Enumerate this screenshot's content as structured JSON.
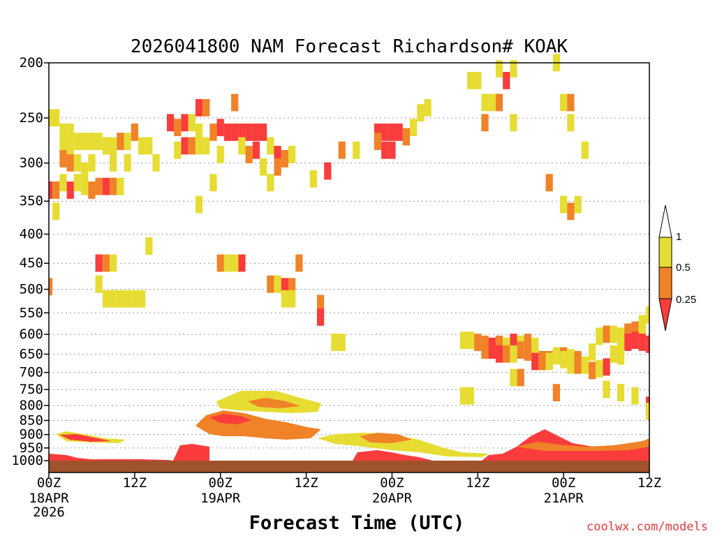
{
  "chart_data": {
    "type": "heatmap",
    "title": "2026041800 NAM Forecast Richardson# KOAK",
    "xlabel": "Forecast Time (UTC)",
    "credit": "coolwx.com/models",
    "y_scale": "log-pressure",
    "ylim": [
      1000,
      200
    ],
    "y_ticks": [
      200,
      250,
      300,
      350,
      400,
      450,
      500,
      550,
      600,
      650,
      700,
      750,
      800,
      850,
      900,
      950,
      1000
    ],
    "x_range_hours": [
      0,
      84
    ],
    "x_ticks": [
      {
        "hour": 0,
        "label": "00Z",
        "date": "18APR",
        "year": "2026"
      },
      {
        "hour": 12,
        "label": "12Z",
        "date": "",
        "year": ""
      },
      {
        "hour": 24,
        "label": "00Z",
        "date": "19APR",
        "year": ""
      },
      {
        "hour": 36,
        "label": "12Z",
        "date": "",
        "year": ""
      },
      {
        "hour": 48,
        "label": "00Z",
        "date": "20APR",
        "year": ""
      },
      {
        "hour": 60,
        "label": "12Z",
        "date": "",
        "year": ""
      },
      {
        "hour": 72,
        "label": "00Z",
        "date": "21APR",
        "year": ""
      },
      {
        "hour": 84,
        "label": "12Z",
        "date": "",
        "year": ""
      }
    ],
    "legend": {
      "levels": [
        {
          "label": "1",
          "color": "#ffffff"
        },
        {
          "label": "0.5",
          "color": "#e6dc32"
        },
        {
          "label": "0.25",
          "color": "#f08228"
        },
        {
          "label": "",
          "color": "#fa3c3c"
        }
      ]
    },
    "colors": {
      "lt_0_25": "#fa3c3c",
      "0_25_to_0_5": "#f08228",
      "0_5_to_1": "#e6dc32",
      "ground": "#a0522d"
    },
    "ground_pressure": 1000,
    "cells": [
      [
        0,
        250,
        "y"
      ],
      [
        1,
        250,
        "y"
      ],
      [
        2,
        265,
        "y"
      ],
      [
        3,
        265,
        "y"
      ],
      [
        2,
        280,
        "y"
      ],
      [
        3,
        280,
        "y"
      ],
      [
        4,
        275,
        "y"
      ],
      [
        5,
        275,
        "y"
      ],
      [
        6,
        275,
        "y"
      ],
      [
        7,
        275,
        "y"
      ],
      [
        8,
        280,
        "y"
      ],
      [
        9,
        280,
        "y"
      ],
      [
        10,
        275,
        "o"
      ],
      [
        11,
        275,
        "y"
      ],
      [
        12,
        265,
        "o"
      ],
      [
        13,
        280,
        "y"
      ],
      [
        14,
        280,
        "y"
      ],
      [
        2,
        295,
        "o"
      ],
      [
        3,
        300,
        "o"
      ],
      [
        4,
        300,
        "y"
      ],
      [
        5,
        310,
        "y"
      ],
      [
        6,
        300,
        "y"
      ],
      [
        9,
        300,
        "y"
      ],
      [
        0,
        335,
        "r"
      ],
      [
        1,
        335,
        "o"
      ],
      [
        2,
        325,
        "y"
      ],
      [
        3,
        335,
        "r"
      ],
      [
        4,
        325,
        "y"
      ],
      [
        5,
        330,
        "y"
      ],
      [
        6,
        335,
        "o"
      ],
      [
        7,
        330,
        "o"
      ],
      [
        8,
        330,
        "r"
      ],
      [
        9,
        330,
        "o"
      ],
      [
        10,
        330,
        "y"
      ],
      [
        1,
        365,
        "y"
      ],
      [
        11,
        300,
        "y"
      ],
      [
        15,
        300,
        "y"
      ],
      [
        17,
        255,
        "r"
      ],
      [
        18,
        260,
        "o"
      ],
      [
        19,
        255,
        "r"
      ],
      [
        20,
        255,
        "y"
      ],
      [
        19,
        280,
        "r"
      ],
      [
        20,
        280,
        "o"
      ],
      [
        21,
        280,
        "y"
      ],
      [
        21,
        240,
        "r"
      ],
      [
        22,
        240,
        "o"
      ],
      [
        21,
        265,
        "y"
      ],
      [
        18,
        285,
        "y"
      ],
      [
        22,
        280,
        "y"
      ],
      [
        23,
        265,
        "o"
      ],
      [
        24,
        260,
        "r"
      ],
      [
        25,
        265,
        "r"
      ],
      [
        26,
        265,
        "r"
      ],
      [
        27,
        265,
        "r"
      ],
      [
        28,
        265,
        "r"
      ],
      [
        29,
        265,
        "r"
      ],
      [
        30,
        265,
        "r"
      ],
      [
        24,
        290,
        "y"
      ],
      [
        27,
        280,
        "y"
      ],
      [
        28,
        290,
        "o"
      ],
      [
        29,
        285,
        "r"
      ],
      [
        31,
        280,
        "y"
      ],
      [
        32,
        290,
        "r"
      ],
      [
        33,
        295,
        "o"
      ],
      [
        34,
        290,
        "y"
      ],
      [
        32,
        305,
        "o"
      ],
      [
        30,
        305,
        "y"
      ],
      [
        26,
        235,
        "o"
      ],
      [
        21,
        355,
        "y"
      ],
      [
        23,
        325,
        "y"
      ],
      [
        31,
        325,
        "y"
      ],
      [
        41,
        285,
        "o"
      ],
      [
        43,
        285,
        "y"
      ],
      [
        46,
        265,
        "r"
      ],
      [
        47,
        265,
        "r"
      ],
      [
        48,
        265,
        "r"
      ],
      [
        49,
        265,
        "r"
      ],
      [
        50,
        270,
        "o"
      ],
      [
        51,
        260,
        "y"
      ],
      [
        47,
        285,
        "r"
      ],
      [
        48,
        285,
        "r"
      ],
      [
        46,
        275,
        "o"
      ],
      [
        52,
        245,
        "y"
      ],
      [
        53,
        240,
        "y"
      ],
      [
        37,
        320,
        "y"
      ],
      [
        39,
        310,
        "r"
      ],
      [
        59,
        215,
        "y"
      ],
      [
        60,
        215,
        "y"
      ],
      [
        61,
        235,
        "y"
      ],
      [
        62,
        235,
        "y"
      ],
      [
        63,
        235,
        "o"
      ],
      [
        64,
        215,
        "r"
      ],
      [
        63,
        205,
        "y"
      ],
      [
        65,
        205,
        "y"
      ],
      [
        71,
        200,
        "y"
      ],
      [
        72,
        235,
        "y"
      ],
      [
        73,
        235,
        "o"
      ],
      [
        61,
        255,
        "o"
      ],
      [
        65,
        255,
        "y"
      ],
      [
        73,
        255,
        "y"
      ],
      [
        75,
        285,
        "y"
      ],
      [
        70,
        325,
        "o"
      ],
      [
        72,
        355,
        "y"
      ],
      [
        73,
        365,
        "o"
      ],
      [
        74,
        355,
        "y"
      ],
      [
        7,
        450,
        "r"
      ],
      [
        8,
        450,
        "o"
      ],
      [
        9,
        450,
        "y"
      ],
      [
        24,
        450,
        "o"
      ],
      [
        25,
        450,
        "y"
      ],
      [
        26,
        450,
        "y"
      ],
      [
        27,
        450,
        "r"
      ],
      [
        31,
        490,
        "o"
      ],
      [
        32,
        490,
        "y"
      ],
      [
        33,
        495,
        "r"
      ],
      [
        34,
        495,
        "o"
      ],
      [
        35,
        450,
        "o"
      ],
      [
        0,
        495,
        "o"
      ],
      [
        7,
        490,
        "y"
      ],
      [
        8,
        520,
        "y"
      ],
      [
        9,
        520,
        "y"
      ],
      [
        10,
        520,
        "y"
      ],
      [
        11,
        520,
        "y"
      ],
      [
        12,
        520,
        "y"
      ],
      [
        13,
        520,
        "y"
      ],
      [
        14,
        420,
        "y"
      ],
      [
        33,
        520,
        "y"
      ],
      [
        34,
        520,
        "y"
      ],
      [
        38,
        530,
        "o"
      ],
      [
        38,
        560,
        "r"
      ],
      [
        40,
        620,
        "y"
      ],
      [
        41,
        620,
        "y"
      ],
      [
        58,
        615,
        "y"
      ],
      [
        59,
        615,
        "y"
      ],
      [
        60,
        620,
        "o"
      ],
      [
        61,
        625,
        "o"
      ],
      [
        62,
        630,
        "r"
      ],
      [
        63,
        625,
        "o"
      ],
      [
        64,
        630,
        "y"
      ],
      [
        65,
        620,
        "r"
      ],
      [
        66,
        625,
        "y"
      ],
      [
        67,
        620,
        "o"
      ],
      [
        68,
        630,
        "y"
      ],
      [
        61,
        640,
        "o"
      ],
      [
        62,
        640,
        "r"
      ],
      [
        63,
        650,
        "r"
      ],
      [
        64,
        650,
        "o"
      ],
      [
        65,
        650,
        "y"
      ],
      [
        66,
        640,
        "o"
      ],
      [
        67,
        645,
        "o"
      ],
      [
        68,
        640,
        "y"
      ],
      [
        69,
        665,
        "o"
      ],
      [
        70,
        665,
        "o"
      ],
      [
        71,
        655,
        "y"
      ],
      [
        72,
        655,
        "o"
      ],
      [
        73,
        660,
        "y"
      ],
      [
        74,
        665,
        "o"
      ],
      [
        68,
        670,
        "r"
      ],
      [
        69,
        670,
        "o"
      ],
      [
        70,
        670,
        "y"
      ],
      [
        72,
        665,
        "y"
      ],
      [
        73,
        680,
        "y"
      ],
      [
        74,
        680,
        "o"
      ],
      [
        75,
        680,
        "y"
      ],
      [
        76,
        695,
        "o"
      ],
      [
        77,
        690,
        "y"
      ],
      [
        78,
        685,
        "r"
      ],
      [
        77,
        605,
        "y"
      ],
      [
        78,
        600,
        "o"
      ],
      [
        79,
        600,
        "y"
      ],
      [
        80,
        605,
        "y"
      ],
      [
        81,
        595,
        "o"
      ],
      [
        82,
        590,
        "o"
      ],
      [
        83,
        600,
        "y"
      ],
      [
        83,
        620,
        "r"
      ],
      [
        84,
        625,
        "r"
      ],
      [
        81,
        620,
        "r"
      ],
      [
        82,
        615,
        "r"
      ],
      [
        80,
        620,
        "y"
      ],
      [
        83,
        575,
        "y"
      ],
      [
        84,
        555,
        "y"
      ],
      [
        71,
        760,
        "o"
      ],
      [
        78,
        750,
        "y"
      ],
      [
        80,
        760,
        "y"
      ],
      [
        82,
        770,
        "y"
      ],
      [
        84,
        800,
        "r"
      ],
      [
        84,
        820,
        "y"
      ],
      [
        58,
        770,
        "y"
      ],
      [
        59,
        770,
        "y"
      ],
      [
        65,
        715,
        "y"
      ],
      [
        66,
        715,
        "o"
      ],
      [
        76,
        645,
        "y"
      ],
      [
        79,
        650,
        "y"
      ],
      [
        80,
        655,
        "y"
      ]
    ]
  }
}
